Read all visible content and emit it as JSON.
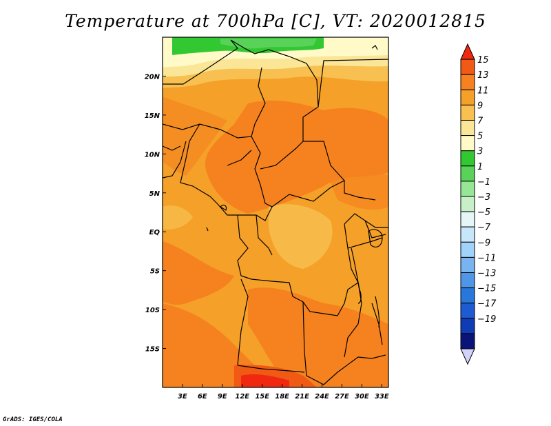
{
  "title": "Temperature at 700hPa [C], VT: 2020012815",
  "credit": "GrADS: IGES/COLA",
  "map": {
    "lon_range": [
      0,
      34
    ],
    "lat_range": [
      -20,
      25
    ],
    "lon_ticks": [
      {
        "value": 3,
        "label": "3E"
      },
      {
        "value": 6,
        "label": "6E"
      },
      {
        "value": 9,
        "label": "9E"
      },
      {
        "value": 12,
        "label": "12E"
      },
      {
        "value": 15,
        "label": "15E"
      },
      {
        "value": 18,
        "label": "18E"
      },
      {
        "value": 21,
        "label": "21E"
      },
      {
        "value": 24,
        "label": "24E"
      },
      {
        "value": 27,
        "label": "27E"
      },
      {
        "value": 30,
        "label": "30E"
      },
      {
        "value": 33,
        "label": "33E"
      }
    ],
    "lat_ticks": [
      {
        "value": 20,
        "label": "20N"
      },
      {
        "value": 15,
        "label": "15N"
      },
      {
        "value": 10,
        "label": "10N"
      },
      {
        "value": 5,
        "label": "5N"
      },
      {
        "value": 0,
        "label": "EQ"
      },
      {
        "value": -5,
        "label": "5S"
      },
      {
        "value": -10,
        "label": "10S"
      },
      {
        "value": -15,
        "label": "15S"
      }
    ]
  },
  "colorbar": {
    "labels": [
      "15",
      "13",
      "11",
      "9",
      "7",
      "5",
      "3",
      "1",
      "−1",
      "−3",
      "−5",
      "−7",
      "−9",
      "−11",
      "−13",
      "−15",
      "−17",
      "−19"
    ],
    "colors": [
      "#f02810",
      "#f05a14",
      "#f5821e",
      "#f5a028",
      "#f8c050",
      "#fae696",
      "#fffac8",
      "#32c832",
      "#5ad25a",
      "#96e696",
      "#c8f0c8",
      "#e6f5f5",
      "#c8e6fa",
      "#a0d2fa",
      "#78b4f0",
      "#5096e6",
      "#2878dc",
      "#1e5ad2",
      "#0f3cb4",
      "#0a1478",
      "#d2d2fa"
    ]
  }
}
